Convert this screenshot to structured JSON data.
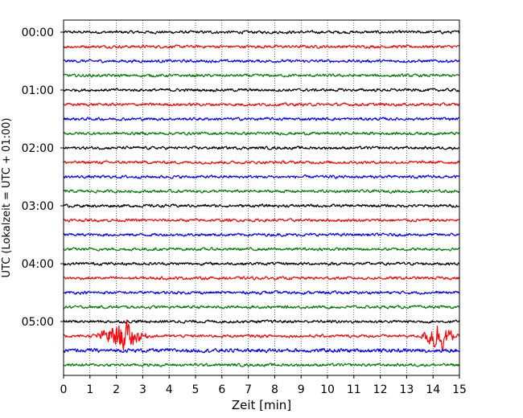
{
  "chart_data": {
    "type": "line",
    "title": "",
    "xlabel": "Zeit  [min]",
    "ylabel": "UTC (Lokalzeit = UTC + 01:00)",
    "xlim": [
      0,
      15
    ],
    "x_ticks": [
      "0",
      "1",
      "2",
      "3",
      "4",
      "5",
      "6",
      "7",
      "8",
      "9",
      "10",
      "11",
      "12",
      "13",
      "14",
      "15"
    ],
    "y_ticks": [
      "00:00",
      "01:00",
      "02:00",
      "03:00",
      "04:00",
      "05:00"
    ],
    "grid": "vertical dotted at each minute",
    "trace_interval_min": 15,
    "trace_colors": [
      "#000000",
      "#ff0000",
      "#0000ff",
      "#007f00"
    ],
    "series": [
      {
        "start": "00:00",
        "color": "#000000",
        "amplitude": 0.12
      },
      {
        "start": "00:15",
        "color": "#ff0000",
        "amplitude": 0.12
      },
      {
        "start": "00:30",
        "color": "#0000ff",
        "amplitude": 0.12
      },
      {
        "start": "00:45",
        "color": "#007f00",
        "amplitude": 0.12
      },
      {
        "start": "01:00",
        "color": "#000000",
        "amplitude": 0.12
      },
      {
        "start": "01:15",
        "color": "#ff0000",
        "amplitude": 0.12
      },
      {
        "start": "01:30",
        "color": "#0000ff",
        "amplitude": 0.12
      },
      {
        "start": "01:45",
        "color": "#007f00",
        "amplitude": 0.12
      },
      {
        "start": "02:00",
        "color": "#000000",
        "amplitude": 0.12
      },
      {
        "start": "02:15",
        "color": "#ff0000",
        "amplitude": 0.12
      },
      {
        "start": "02:30",
        "color": "#0000ff",
        "amplitude": 0.12
      },
      {
        "start": "02:45",
        "color": "#007f00",
        "amplitude": 0.12
      },
      {
        "start": "03:00",
        "color": "#000000",
        "amplitude": 0.12
      },
      {
        "start": "03:15",
        "color": "#ff0000",
        "amplitude": 0.12
      },
      {
        "start": "03:30",
        "color": "#0000ff",
        "amplitude": 0.12
      },
      {
        "start": "03:45",
        "color": "#007f00",
        "amplitude": 0.12
      },
      {
        "start": "04:00",
        "color": "#000000",
        "amplitude": 0.12
      },
      {
        "start": "04:15",
        "color": "#ff0000",
        "amplitude": 0.12
      },
      {
        "start": "04:30",
        "color": "#0000ff",
        "amplitude": 0.12
      },
      {
        "start": "04:45",
        "color": "#007f00",
        "amplitude": 0.12
      },
      {
        "start": "05:00",
        "color": "#000000",
        "amplitude": 0.12
      },
      {
        "start": "05:15",
        "color": "#ff0000",
        "amplitude": 0.12,
        "events": [
          {
            "from": 1.0,
            "to": 4.0,
            "peak_min": 2.2,
            "peak_amp": 1.2
          },
          {
            "from": 13.0,
            "to": 15.0,
            "peak_min": 14.2,
            "peak_amp": 1.2
          }
        ]
      },
      {
        "start": "05:30",
        "color": "#0000ff",
        "amplitude": 0.16
      },
      {
        "start": "05:45",
        "color": "#007f00",
        "amplitude": 0.12
      }
    ]
  }
}
